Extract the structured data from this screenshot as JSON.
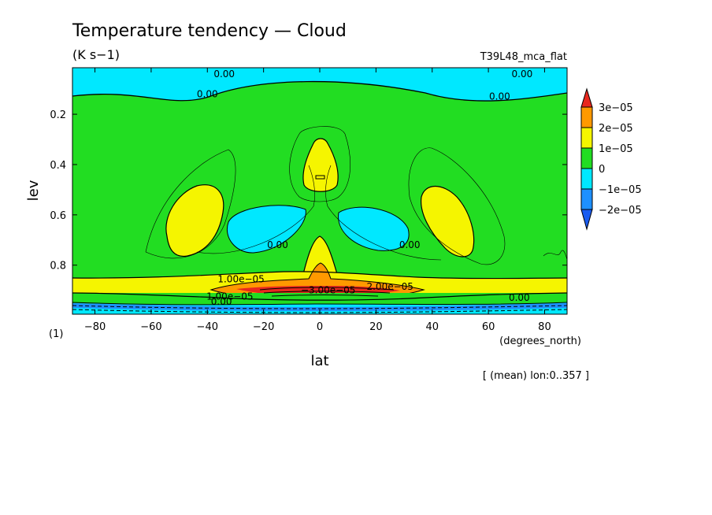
{
  "chart_data": {
    "type": "heatmap",
    "title": "Temperature tendency — Cloud",
    "subtitle": "(K s−1)",
    "run_label": "T39L48_mca_flat",
    "panel_label": "(1)",
    "xlabel": "lat",
    "x_units": "(degrees_north)",
    "ylabel": "lev",
    "footer": "[ (mean) lon:0..357 ]",
    "xlim": [
      -88,
      88
    ],
    "ylim": [
      0.015,
      0.995
    ],
    "y_inverted": true,
    "x_ticks": [
      -80,
      -60,
      -40,
      -20,
      0,
      20,
      40,
      60,
      80
    ],
    "x_tick_labels": [
      "−80",
      "−60",
      "−40",
      "−20",
      "0",
      "20",
      "40",
      "60",
      "80"
    ],
    "y_ticks": [
      0.2,
      0.4,
      0.6,
      0.8
    ],
    "y_tick_labels": [
      "0.2",
      "0.4",
      "0.6",
      "0.8"
    ],
    "colorbar": {
      "levels": [
        "3e−05",
        "2e−05",
        "1e−05",
        "0",
        "−1e−05",
        "−2e−05"
      ],
      "colors": {
        "gt_3e-05": "#e8281e",
        "2e-05_to_3e-05": "#ff9900",
        "1e-05_to_2e-05": "#f5f500",
        "0_to_1e-05": "#22dd22",
        "-1e-05_to_0": "#00e8ff",
        "-2e-05_to_-1e-05": "#1e90ff",
        "lt_-2e-05": "#1a5cf0"
      }
    },
    "contour_labels": [
      {
        "text": "0.00",
        "lat": -34,
        "lev": 0.04
      },
      {
        "text": "0.00",
        "lat": -40,
        "lev": 0.12
      },
      {
        "text": "0.00",
        "lat": 72,
        "lev": 0.04
      },
      {
        "text": "0.00",
        "lat": 64,
        "lev": 0.13
      },
      {
        "text": "0.00",
        "lat": -15,
        "lev": 0.72
      },
      {
        "text": "0.00",
        "lat": 32,
        "lev": 0.72
      },
      {
        "text": "1.00e−05",
        "lat": -28,
        "lev": 0.855
      },
      {
        "text": "−3.00e−05",
        "lat": 3,
        "lev": 0.9
      },
      {
        "text": "2.00e−05",
        "lat": 25,
        "lev": 0.885
      },
      {
        "text": "1.00e−05",
        "lat": -32,
        "lev": 0.925
      },
      {
        "text": "0.00",
        "lat": -35,
        "lev": 0.945
      },
      {
        "text": "0.00",
        "lat": 71,
        "lev": 0.93
      }
    ]
  }
}
